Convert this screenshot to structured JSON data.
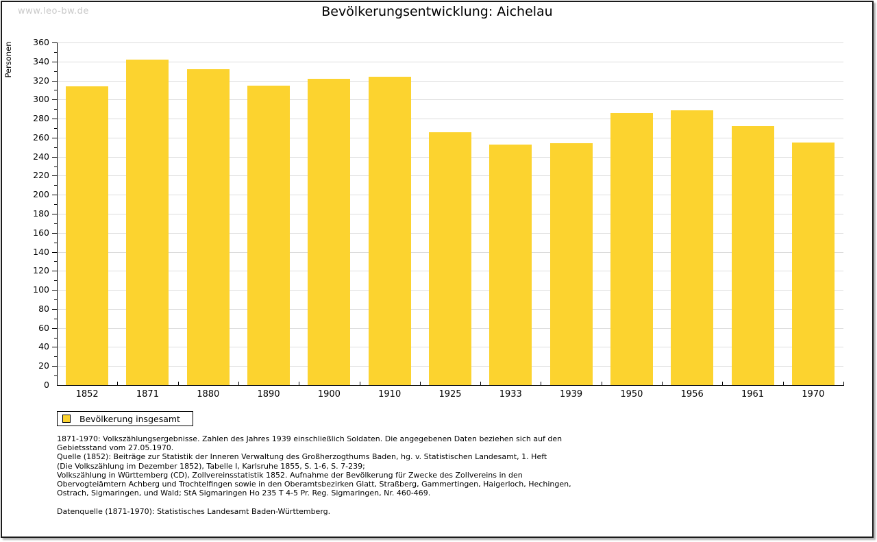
{
  "watermark": "www.leo-bw.de",
  "title": "Bevölkerungsentwicklung: Aichelau",
  "colors": {
    "bar": "#fcd32f",
    "grid": "#dcdcdc",
    "axis": "#000000",
    "watermark": "#c9c9c9"
  },
  "chart_data": {
    "type": "bar",
    "title": "Bevölkerungsentwicklung: Aichelau",
    "categories": [
      "1852",
      "1871",
      "1880",
      "1890",
      "1900",
      "1910",
      "1925",
      "1933",
      "1939",
      "1950",
      "1956",
      "1961",
      "1970"
    ],
    "values": [
      314,
      342,
      332,
      315,
      322,
      324,
      266,
      253,
      254,
      286,
      289,
      272,
      255
    ],
    "series_name": "Bevölkerung insgesamt",
    "xlabel": "",
    "ylabel": "Personen",
    "ylim": [
      0,
      360
    ],
    "ytick_major": 20,
    "ytick_minor": 10,
    "grid": true,
    "legend_position": "bottom-left",
    "bar_color": "#fcd32f"
  },
  "legend": {
    "label": "Bevölkerung insgesamt"
  },
  "footnotes": {
    "lines": [
      "1871-1970: Volkszählungsergebnisse. Zahlen des Jahres 1939 einschließlich Soldaten. Die angegebenen Daten beziehen sich auf den",
      "Gebietsstand vom 27.05.1970.",
      "Quelle (1852): Beiträge zur Statistik der Inneren Verwaltung des Großherzogthums Baden, hg. v. Statistischen Landesamt, 1. Heft",
      "(Die Volkszählung im Dezember 1852), Tabelle I, Karlsruhe 1855, S. 1-6, S. 7-239;",
      "Volkszählung in Württemberg (CD), Zollvereinsstatistik 1852. Aufnahme der Bevölkerung für Zwecke des Zollvereins in den",
      "Obervogteiämtern Achberg und Trochtelfingen sowie in den Oberamtsbezirken Glatt, Straßberg, Gammertingen, Haigerloch, Hechingen,",
      "Ostrach, Sigmaringen, und Wald; StA Sigmaringen Ho 235 T 4-5 Pr. Reg. Sigmaringen, Nr. 460-469.",
      "",
      "Datenquelle (1871-1970): Statistisches Landesamt Baden-Württemberg."
    ]
  }
}
